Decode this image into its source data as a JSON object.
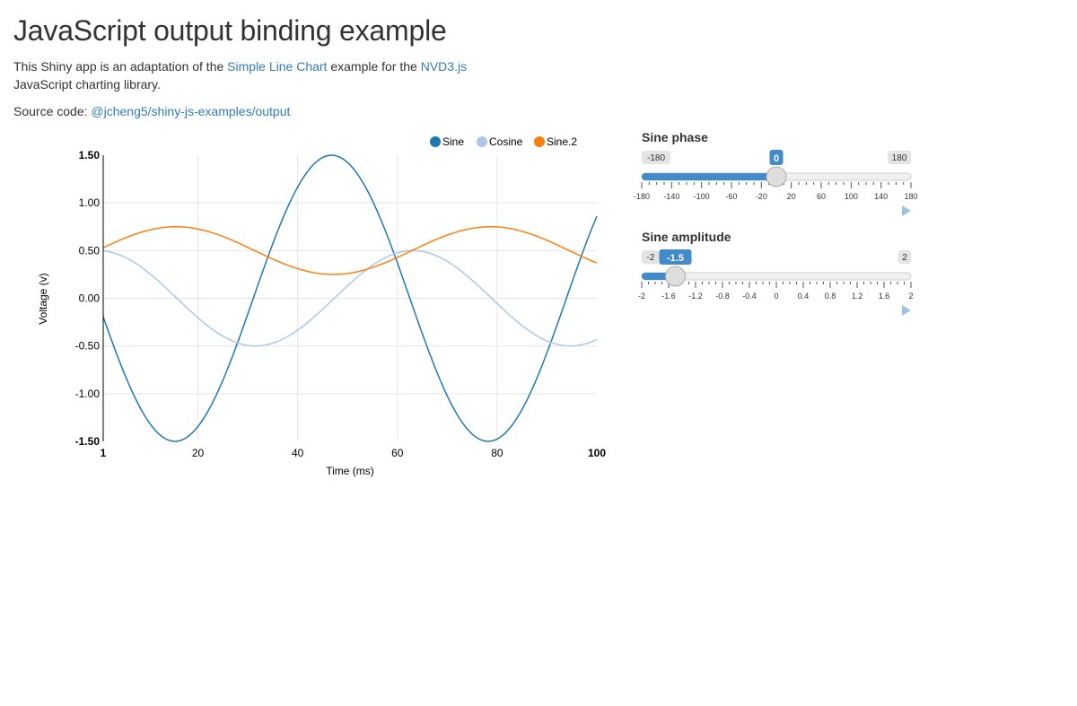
{
  "title": "JavaScript output binding example",
  "intro": {
    "before": "This Shiny app is an adaptation of the ",
    "link1": "Simple Line Chart",
    "middle": " example for the ",
    "link2": "NVD3.js",
    "after": " JavaScript charting library."
  },
  "source": {
    "label": "Source code: ",
    "link": "@jcheng5/shiny-js-examples/output"
  },
  "chart_data": {
    "type": "line",
    "xlabel": "Time (ms)",
    "ylabel": "Voltage (v)",
    "xlim": [
      1,
      100
    ],
    "ylim": [
      -1.5,
      1.5
    ],
    "xticks": [
      20,
      40,
      60,
      80
    ],
    "x_edge_labels": [
      "1",
      "100"
    ],
    "yticks": [
      "1.50",
      "1.00",
      "0.50",
      "0.00",
      "-0.50",
      "-1.00",
      "-1.50"
    ],
    "grid": true,
    "legend_position": "top-right",
    "series": [
      {
        "name": "Sine",
        "color": "#1f77b4",
        "amplitude": -1.5,
        "phase_deg": 0,
        "offset": 0,
        "period_ms": 62.8,
        "note": ""
      },
      {
        "name": "Cosine",
        "color": "#aec7e8",
        "amplitude": 0.5,
        "phase_deg": 0,
        "offset": 0,
        "period_ms": 62.8,
        "note": ""
      },
      {
        "name": "Sine.2",
        "color": "#ff7f0e",
        "amplitude": 0.25,
        "phase_deg": 0,
        "offset": 0.5,
        "period_ms": 62.8,
        "note": ""
      }
    ]
  },
  "sliders": [
    {
      "id": "phase",
      "label": "Sine phase",
      "min": -180,
      "max": 180,
      "value": 0,
      "min_label": "-180",
      "max_label": "180",
      "value_label": "0",
      "tick_labels": [
        "-180",
        "-140",
        "-100",
        "-60",
        "-20",
        "20",
        "60",
        "100",
        "140",
        "180"
      ],
      "minor_ticks": 36
    },
    {
      "id": "amplitude",
      "label": "Sine amplitude",
      "min": -2,
      "max": 2,
      "value": -1.5,
      "min_label": "-2",
      "max_label": "2",
      "value_label": "-1.5",
      "tick_labels": [
        "-2",
        "-1.6",
        "-1.2",
        "-0.8",
        "-0.4",
        "0",
        "0.4",
        "0.8",
        "1.2",
        "1.6",
        "2"
      ],
      "minor_ticks": 40
    }
  ],
  "colors": {
    "accent": "#428bca",
    "link": "#337ab7",
    "text": "#333333"
  },
  "icons": {
    "play": "play-icon"
  }
}
